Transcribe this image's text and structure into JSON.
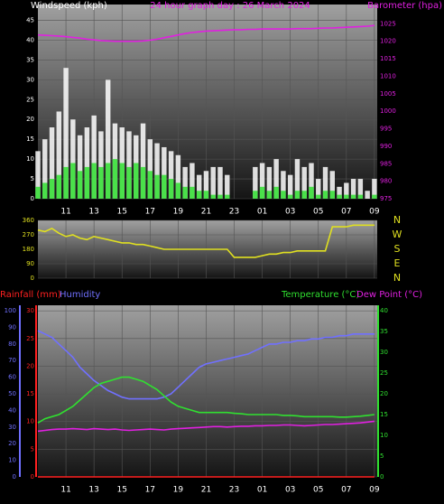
{
  "chart_data": [
    {
      "type": "combo",
      "title": "24 hour graph day : 26 March 2024",
      "y_label": "Windspeed (kph)",
      "y2_label": "Barometer (hpa)",
      "axis_colors": {
        "y": "#ffffff",
        "y2": "#e020e0"
      },
      "x": [
        0,
        0.5,
        1,
        1.5,
        2,
        2.5,
        3,
        3.5,
        4,
        4.5,
        5,
        5.5,
        6,
        6.5,
        7,
        7.5,
        8,
        8.5,
        9,
        9.5,
        10,
        10.5,
        11,
        11.5,
        12,
        12.5,
        13,
        13.5,
        14,
        14.5,
        15,
        15.5,
        16,
        16.5,
        17,
        17.5,
        18,
        18.5,
        19,
        19.5,
        20,
        20.5,
        21,
        21.5,
        22,
        22.5,
        23,
        23.5,
        24
      ],
      "xlim": [
        0,
        24.2
      ],
      "xticks": [
        {
          "value": 2,
          "label": "11"
        },
        {
          "value": 4,
          "label": "13"
        },
        {
          "value": 6,
          "label": "15"
        },
        {
          "value": 8,
          "label": "17"
        },
        {
          "value": 10,
          "label": "19"
        },
        {
          "value": 12,
          "label": "21"
        },
        {
          "value": 14,
          "label": "23"
        },
        {
          "value": 16,
          "label": "01"
        },
        {
          "value": 18,
          "label": "03"
        },
        {
          "value": 20,
          "label": "05"
        },
        {
          "value": 22,
          "label": "07"
        },
        {
          "value": 24,
          "label": "09"
        }
      ],
      "ylim": [
        0,
        49
      ],
      "yticks": [
        0,
        5,
        10,
        15,
        20,
        25,
        30,
        35,
        40,
        45
      ],
      "y2lim": [
        975,
        1030.5
      ],
      "y2ticks": [
        975,
        980,
        985,
        990,
        995,
        1000,
        1005,
        1010,
        1015,
        1020,
        1025
      ],
      "grid": true,
      "series": [
        {
          "type": "bar",
          "color": "#ffffff",
          "values": [
            12,
            15,
            18,
            22,
            33,
            20,
            16,
            18,
            21,
            17,
            30,
            19,
            18,
            17,
            16,
            19,
            15,
            14,
            13,
            12,
            11,
            8,
            9,
            6,
            7,
            8,
            8,
            6,
            0,
            0,
            0,
            8,
            9,
            8,
            10,
            7,
            6,
            10,
            8,
            9,
            5,
            8,
            7,
            3,
            4,
            5,
            5,
            2,
            5
          ]
        },
        {
          "type": "bar",
          "color": "#30e030",
          "values": [
            3,
            4,
            5,
            6,
            8,
            9,
            7,
            8,
            9,
            8,
            9,
            10,
            9,
            8,
            9,
            8,
            7,
            6,
            6,
            5,
            4,
            3,
            3,
            2,
            2,
            1,
            1,
            1,
            0,
            0,
            0,
            2,
            3,
            2,
            3,
            2,
            1,
            2,
            2,
            3,
            1,
            2,
            2,
            1,
            1,
            1,
            1,
            0,
            1
          ]
        },
        {
          "type": "line",
          "axis": "y2",
          "color": "#e020e0",
          "values": [
            1021.8,
            1021.7,
            1021.6,
            1021.5,
            1021.3,
            1021.1,
            1020.9,
            1020.6,
            1020.4,
            1020.2,
            1020.1,
            1020.0,
            1020.0,
            1020.0,
            1020.0,
            1020.1,
            1020.3,
            1020.6,
            1021.0,
            1021.4,
            1021.8,
            1022.2,
            1022.5,
            1022.7,
            1022.9,
            1023.0,
            1023.1,
            1023.2,
            1023.3,
            1023.3,
            1023.4,
            1023.4,
            1023.5,
            1023.5,
            1023.5,
            1023.5,
            1023.5,
            1023.6,
            1023.6,
            1023.6,
            1023.7,
            1023.8,
            1023.8,
            1023.9,
            1024.0,
            1024.1,
            1024.2,
            1024.3,
            1024.5
          ]
        }
      ]
    },
    {
      "type": "line",
      "axis_colors": {
        "y": "#e0e020",
        "y2": "#e0e020"
      },
      "x": [
        0,
        0.5,
        1,
        1.5,
        2,
        2.5,
        3,
        3.5,
        4,
        4.5,
        5,
        5.5,
        6,
        6.5,
        7,
        7.5,
        8,
        8.5,
        9,
        9.5,
        10,
        10.5,
        11,
        11.5,
        12,
        12.5,
        13,
        13.5,
        14,
        14.5,
        15,
        15.5,
        16,
        16.5,
        17,
        17.5,
        18,
        18.5,
        19,
        19.5,
        20,
        20.5,
        21,
        21.5,
        22,
        22.5,
        23,
        23.5,
        24
      ],
      "xlim": [
        0,
        24.2
      ],
      "xticks": [
        {
          "value": 2,
          "label": "11"
        },
        {
          "value": 4,
          "label": "13"
        },
        {
          "value": 6,
          "label": "15"
        },
        {
          "value": 8,
          "label": "17"
        },
        {
          "value": 10,
          "label": "19"
        },
        {
          "value": 12,
          "label": "21"
        },
        {
          "value": 14,
          "label": "23"
        },
        {
          "value": 16,
          "label": "01"
        },
        {
          "value": 18,
          "label": "03"
        },
        {
          "value": 20,
          "label": "05"
        },
        {
          "value": 22,
          "label": "07"
        },
        {
          "value": 24,
          "label": "09"
        }
      ],
      "ylim": [
        0,
        360
      ],
      "yticks": [
        0,
        90,
        180,
        270,
        360
      ],
      "y2lim": [
        0,
        360
      ],
      "y2ticks": [
        {
          "value": 360,
          "label": "N"
        },
        {
          "value": 270,
          "label": "W"
        },
        {
          "value": 180,
          "label": "S"
        },
        {
          "value": 90,
          "label": "E"
        },
        {
          "value": 0,
          "label": "N"
        }
      ],
      "grid": true,
      "series": [
        {
          "type": "line",
          "color": "#e0e020",
          "values": [
            300,
            290,
            310,
            280,
            260,
            270,
            250,
            240,
            260,
            250,
            240,
            230,
            220,
            220,
            210,
            210,
            200,
            190,
            180,
            180,
            180,
            180,
            180,
            180,
            180,
            180,
            180,
            180,
            130,
            130,
            130,
            130,
            140,
            150,
            150,
            160,
            160,
            170,
            170,
            170,
            170,
            170,
            320,
            320,
            320,
            330,
            330,
            330,
            330
          ]
        }
      ]
    },
    {
      "type": "line",
      "axis_colors": {
        "y": "#ff2020",
        "y2": "#30e030",
        "y3": "#7070ff"
      },
      "x": [
        0,
        0.5,
        1,
        1.5,
        2,
        2.5,
        3,
        3.5,
        4,
        4.5,
        5,
        5.5,
        6,
        6.5,
        7,
        7.5,
        8,
        8.5,
        9,
        9.5,
        10,
        10.5,
        11,
        11.5,
        12,
        12.5,
        13,
        13.5,
        14,
        14.5,
        15,
        15.5,
        16,
        16.5,
        17,
        17.5,
        18,
        18.5,
        19,
        19.5,
        20,
        20.5,
        21,
        21.5,
        22,
        22.5,
        23,
        23.5,
        24
      ],
      "xlim": [
        0,
        24.2
      ],
      "xticks": [
        {
          "value": 2,
          "label": "11"
        },
        {
          "value": 4,
          "label": "13"
        },
        {
          "value": 6,
          "label": "15"
        },
        {
          "value": 8,
          "label": "17"
        },
        {
          "value": 10,
          "label": "19"
        },
        {
          "value": 12,
          "label": "21"
        },
        {
          "value": 14,
          "label": "23"
        },
        {
          "value": 16,
          "label": "01"
        },
        {
          "value": 18,
          "label": "03"
        },
        {
          "value": 20,
          "label": "05"
        },
        {
          "value": 22,
          "label": "07"
        },
        {
          "value": 24,
          "label": "09"
        }
      ],
      "ylim": [
        0,
        31
      ],
      "yticks": [
        0,
        5,
        10,
        15,
        20,
        25,
        30
      ],
      "y2lim": [
        0,
        41.3
      ],
      "y2ticks": [
        0,
        5,
        10,
        15,
        20,
        25,
        30,
        35,
        40
      ],
      "y3lim": [
        0,
        103.3
      ],
      "y3ticks": [
        0,
        10,
        20,
        30,
        40,
        50,
        60,
        70,
        80,
        90,
        100
      ],
      "grid": true,
      "series": [
        {
          "name": "Rainfall (mm)",
          "axis": "y",
          "color": "#ff2020",
          "values": [
            0,
            0,
            0,
            0,
            0,
            0,
            0,
            0,
            0,
            0,
            0,
            0,
            0,
            0,
            0,
            0,
            0,
            0,
            0,
            0,
            0,
            0,
            0,
            0,
            0,
            0,
            0,
            0,
            0,
            0,
            0,
            0,
            0,
            0,
            0,
            0,
            0,
            0,
            0,
            0,
            0,
            0,
            0,
            0,
            0,
            0,
            0,
            0,
            0
          ]
        },
        {
          "name": "Humidity",
          "axis": "y3",
          "color": "#7070ff",
          "values": [
            88,
            86,
            84,
            80,
            76,
            72,
            66,
            62,
            58,
            55,
            52,
            50,
            48,
            47,
            47,
            47,
            47,
            47,
            48,
            50,
            54,
            58,
            62,
            66,
            68,
            69,
            70,
            71,
            72,
            73,
            74,
            76,
            78,
            80,
            80,
            81,
            81,
            82,
            82,
            83,
            83,
            84,
            84,
            85,
            85,
            86,
            86,
            86,
            86
          ]
        },
        {
          "name": "Temperature (°C)",
          "axis": "y2",
          "color": "#30e030",
          "values": [
            13,
            14,
            14.5,
            15,
            16,
            17,
            18.5,
            20,
            21.5,
            22.5,
            23,
            23.5,
            24,
            24,
            23.5,
            23,
            22,
            21,
            19.5,
            18,
            17,
            16.5,
            16,
            15.5,
            15.5,
            15.5,
            15.5,
            15.5,
            15.3,
            15.2,
            15,
            15,
            15,
            15,
            15,
            14.8,
            14.8,
            14.7,
            14.5,
            14.5,
            14.5,
            14.5,
            14.5,
            14.4,
            14.4,
            14.5,
            14.6,
            14.8,
            15
          ]
        },
        {
          "name": "Dew Point (°C)",
          "axis": "y2",
          "color": "#e020e0",
          "values": [
            11,
            11.2,
            11.4,
            11.5,
            11.5,
            11.6,
            11.5,
            11.4,
            11.6,
            11.5,
            11.4,
            11.5,
            11.3,
            11.2,
            11.3,
            11.4,
            11.5,
            11.4,
            11.3,
            11.5,
            11.6,
            11.7,
            11.8,
            11.9,
            12,
            12.1,
            12.1,
            12,
            12.1,
            12.2,
            12.2,
            12.3,
            12.3,
            12.4,
            12.4,
            12.5,
            12.5,
            12.4,
            12.3,
            12.4,
            12.5,
            12.6,
            12.6,
            12.7,
            12.8,
            12.9,
            13,
            13.2,
            13.4
          ]
        }
      ]
    }
  ]
}
